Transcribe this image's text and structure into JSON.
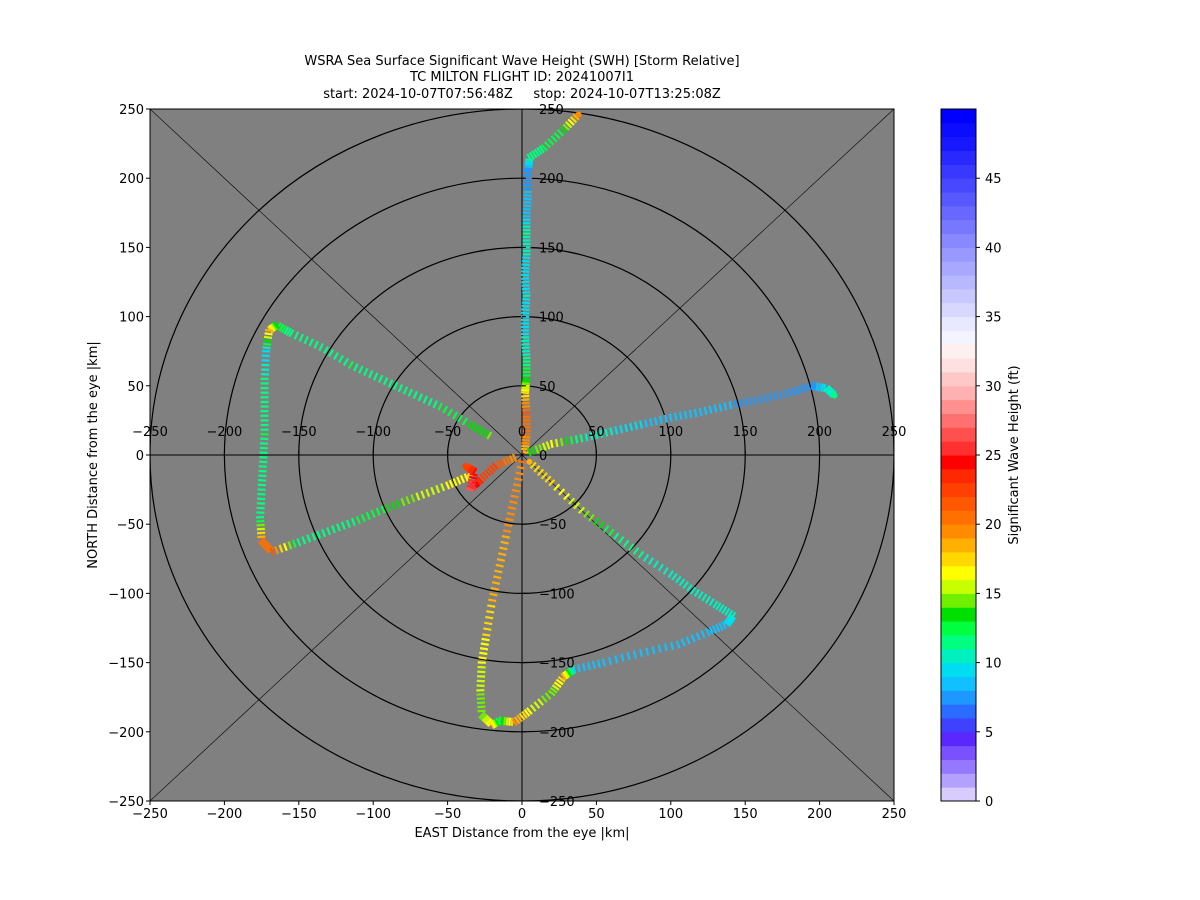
{
  "figure": {
    "title_lines": [
      "WSRA Sea Surface Significant Wave Height (SWH) [Storm Relative]",
      "TC MILTON FLIGHT ID: 20241007I1",
      "start: 2024-10-07T07:56:48Z     stop: 2024-10-07T13:25:08Z"
    ]
  },
  "chart_data": {
    "type": "scatter",
    "title": "WSRA Sea Surface Significant Wave Height (SWH) [Storm Relative]",
    "xlabel": "EAST Distance from the eye |km|",
    "ylabel": "NORTH Distance from the eye |km|",
    "xlim": [
      -250,
      250
    ],
    "ylim": [
      -250,
      250
    ],
    "xticks": [
      -250,
      -200,
      -150,
      -100,
      -50,
      0,
      50,
      100,
      150,
      200,
      250
    ],
    "yticks": [
      -250,
      -200,
      -150,
      -100,
      -50,
      0,
      50,
      100,
      150,
      200,
      250
    ],
    "inner_xticks": [
      -250,
      -200,
      -150,
      -100,
      -50,
      0,
      50,
      100,
      150,
      200,
      250
    ],
    "inner_yticks": [
      -250,
      -200,
      -150,
      -100,
      -50,
      0,
      50,
      100,
      150,
      200,
      250
    ],
    "range_rings_km": [
      50,
      100,
      150,
      200,
      250
    ],
    "background_color": "#808080",
    "grid": false,
    "colorbar": {
      "label": "Significant Wave Height (ft)",
      "min": 0,
      "max": 50,
      "ticks": [
        0,
        5,
        10,
        15,
        20,
        25,
        30,
        35,
        40,
        45
      ],
      "colors": [
        "#d8ccff",
        "#b4a0ff",
        "#9478ff",
        "#7a50ff",
        "#5a28ff",
        "#4040ff",
        "#2a6cff",
        "#1e98ff",
        "#10c0ff",
        "#00dcf0",
        "#00f0c0",
        "#00ff80",
        "#00ff40",
        "#00e000",
        "#70f000",
        "#c8ff00",
        "#ffff00",
        "#ffd800",
        "#ffb000",
        "#ff8c00",
        "#ff7000",
        "#ff5800",
        "#ff4000",
        "#ff2800",
        "#ff0000",
        "#ff3030",
        "#ff5050",
        "#ff7070",
        "#ff9090",
        "#ffb0b0",
        "#ffc8c8",
        "#ffe0e0",
        "#fff0f0",
        "#f4f4ff",
        "#e8e8ff",
        "#d8d8ff",
        "#c8c8ff",
        "#b8b8ff",
        "#a8a8ff",
        "#9898ff",
        "#8888ff",
        "#7878ff",
        "#6868ff",
        "#5858ff",
        "#4848ff",
        "#3838ff",
        "#2828ff",
        "#1818ff",
        "#0c0cff",
        "#0000ff"
      ]
    },
    "series": [
      {
        "points": [
          {
            "x": 2,
            "y": 2,
            "v": 18
          },
          {
            "x": 3,
            "y": 15,
            "v": 20
          },
          {
            "x": 3,
            "y": 30,
            "v": 21
          },
          {
            "x": 2,
            "y": 45,
            "v": 17
          },
          {
            "x": 3,
            "y": 55,
            "v": 13
          },
          {
            "x": 3,
            "y": 70,
            "v": 11
          },
          {
            "x": 2,
            "y": 85,
            "v": 10
          },
          {
            "x": 2,
            "y": 100,
            "v": 9
          },
          {
            "x": 3,
            "y": 115,
            "v": 10
          },
          {
            "x": 2,
            "y": 130,
            "v": 9
          },
          {
            "x": 3,
            "y": 145,
            "v": 10
          },
          {
            "x": 3,
            "y": 160,
            "v": 11
          },
          {
            "x": 3,
            "y": 175,
            "v": 8
          },
          {
            "x": 4,
            "y": 190,
            "v": 8
          },
          {
            "x": 4,
            "y": 205,
            "v": 7
          },
          {
            "x": 5,
            "y": 215,
            "v": 11
          },
          {
            "x": 15,
            "y": 222,
            "v": 12
          },
          {
            "x": 28,
            "y": 235,
            "v": 13
          },
          {
            "x": 38,
            "y": 246,
            "v": 19
          }
        ]
      },
      {
        "points": [
          {
            "x": 5,
            "y": 2,
            "v": 13
          },
          {
            "x": 20,
            "y": 8,
            "v": 16
          },
          {
            "x": 40,
            "y": 12,
            "v": 11
          },
          {
            "x": 60,
            "y": 17,
            "v": 10
          },
          {
            "x": 80,
            "y": 22,
            "v": 9
          },
          {
            "x": 100,
            "y": 27,
            "v": 8
          },
          {
            "x": 120,
            "y": 31,
            "v": 8
          },
          {
            "x": 140,
            "y": 36,
            "v": 8
          },
          {
            "x": 160,
            "y": 40,
            "v": 7
          },
          {
            "x": 180,
            "y": 45,
            "v": 7
          },
          {
            "x": 195,
            "y": 50,
            "v": 7
          },
          {
            "x": 205,
            "y": 48,
            "v": 10
          },
          {
            "x": 210,
            "y": 43,
            "v": 11
          }
        ]
      },
      {
        "points": [
          {
            "x": -22,
            "y": 14,
            "v": 14
          },
          {
            "x": -35,
            "y": 22,
            "v": 13
          },
          {
            "x": -55,
            "y": 35,
            "v": 12
          },
          {
            "x": -75,
            "y": 45,
            "v": 11
          },
          {
            "x": -95,
            "y": 55,
            "v": 11
          },
          {
            "x": -115,
            "y": 65,
            "v": 12
          },
          {
            "x": -135,
            "y": 78,
            "v": 11
          },
          {
            "x": -155,
            "y": 88,
            "v": 11
          },
          {
            "x": -165,
            "y": 94,
            "v": 13
          },
          {
            "x": -170,
            "y": 90,
            "v": 18
          },
          {
            "x": -172,
            "y": 75,
            "v": 9
          },
          {
            "x": -173,
            "y": 55,
            "v": 11
          },
          {
            "x": -173,
            "y": 35,
            "v": 11
          },
          {
            "x": -173,
            "y": 15,
            "v": 12
          },
          {
            "x": -174,
            "y": -5,
            "v": 11
          },
          {
            "x": -175,
            "y": -25,
            "v": 11
          },
          {
            "x": -176,
            "y": -45,
            "v": 11
          },
          {
            "x": -175,
            "y": -62,
            "v": 20
          },
          {
            "x": -168,
            "y": -70,
            "v": 21
          },
          {
            "x": -150,
            "y": -63,
            "v": 11
          },
          {
            "x": -130,
            "y": -55,
            "v": 11
          },
          {
            "x": -110,
            "y": -47,
            "v": 12
          },
          {
            "x": -90,
            "y": -38,
            "v": 13
          },
          {
            "x": -70,
            "y": -30,
            "v": 15
          },
          {
            "x": -50,
            "y": -22,
            "v": 16
          },
          {
            "x": -35,
            "y": -15,
            "v": 17
          }
        ]
      },
      {
        "points": [
          {
            "x": -5,
            "y": -2,
            "v": 19
          },
          {
            "x": -18,
            "y": -8,
            "v": 22
          },
          {
            "x": -28,
            "y": -18,
            "v": 23
          },
          {
            "x": -35,
            "y": -25,
            "v": 26
          },
          {
            "x": -32,
            "y": -12,
            "v": 24
          },
          {
            "x": -38,
            "y": -8,
            "v": 22
          }
        ]
      },
      {
        "points": [
          {
            "x": 0,
            "y": -5,
            "v": 20
          },
          {
            "x": -5,
            "y": -30,
            "v": 19
          },
          {
            "x": -10,
            "y": -55,
            "v": 19
          },
          {
            "x": -15,
            "y": -80,
            "v": 18
          },
          {
            "x": -20,
            "y": -105,
            "v": 18
          },
          {
            "x": -24,
            "y": -130,
            "v": 17
          },
          {
            "x": -27,
            "y": -150,
            "v": 16
          },
          {
            "x": -28,
            "y": -170,
            "v": 15
          },
          {
            "x": -27,
            "y": -188,
            "v": 14
          },
          {
            "x": -20,
            "y": -195,
            "v": 17
          },
          {
            "x": -15,
            "y": -192,
            "v": 12
          },
          {
            "x": -5,
            "y": -193,
            "v": 19
          },
          {
            "x": 5,
            "y": -185,
            "v": 16
          },
          {
            "x": 20,
            "y": -172,
            "v": 14
          },
          {
            "x": 28,
            "y": -160,
            "v": 18
          },
          {
            "x": 35,
            "y": -155,
            "v": 9
          },
          {
            "x": 55,
            "y": -150,
            "v": 8
          },
          {
            "x": 80,
            "y": -143,
            "v": 8
          },
          {
            "x": 105,
            "y": -137,
            "v": 8
          },
          {
            "x": 125,
            "y": -128,
            "v": 8
          },
          {
            "x": 138,
            "y": -122,
            "v": 9
          },
          {
            "x": 142,
            "y": -116,
            "v": 10
          },
          {
            "x": 130,
            "y": -108,
            "v": 10
          },
          {
            "x": 115,
            "y": -98,
            "v": 10
          },
          {
            "x": 100,
            "y": -86,
            "v": 10
          },
          {
            "x": 80,
            "y": -72,
            "v": 11
          },
          {
            "x": 60,
            "y": -56,
            "v": 12
          },
          {
            "x": 40,
            "y": -40,
            "v": 15
          },
          {
            "x": 20,
            "y": -20,
            "v": 17
          },
          {
            "x": 5,
            "y": -5,
            "v": 18
          }
        ]
      }
    ]
  }
}
